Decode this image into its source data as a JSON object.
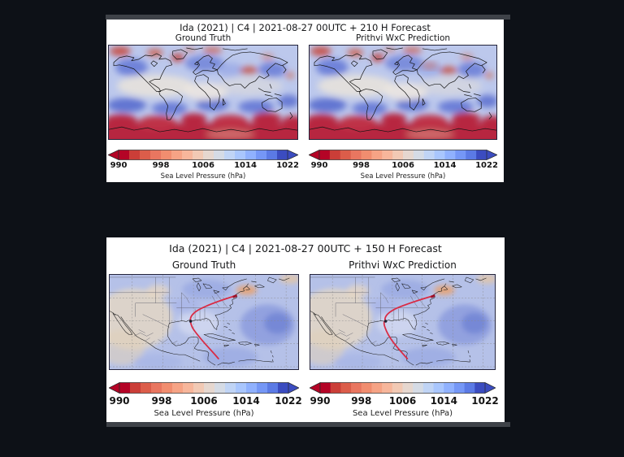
{
  "colors": {
    "background": "#0d1117",
    "figure_background": "#ffffff",
    "divider_bar": "#3e4248",
    "track": "#d92b45",
    "ocean_base": "#b5c1e8"
  },
  "figures": [
    {
      "title": "Ida (2021) | C4 | 2021-08-27 00UTC + 210 H Forecast",
      "panel_left": "Ground Truth",
      "panel_right": "Prithvi WxC Prediction"
    },
    {
      "title": "Ida (2021) | C4 | 2021-08-27 00UTC + 150 H Forecast",
      "panel_left": "Ground Truth",
      "panel_right": "Prithvi WxC Prediction"
    }
  ],
  "colorbar": {
    "ticks": [
      "990",
      "998",
      "1006",
      "1014",
      "1022"
    ],
    "label": "Sea Level Pressure (hPa)",
    "edge_color": "#2a2a2a",
    "colors": [
      "#b40426",
      "#cb3e38",
      "#dc5d4a",
      "#e97660",
      "#f18d6f",
      "#f6a385",
      "#f7b69b",
      "#f2c9b4",
      "#e6d7cf",
      "#d5dbe5",
      "#c0d4f5",
      "#a9c6fd",
      "#90b1fe",
      "#7597f6",
      "#5b7ae5",
      "#3b4cc0"
    ]
  },
  "chart_data": [
    {
      "type": "heatmap",
      "title": "Ida (2021) | C4 | 2021-08-27 00UTC + 210 H Forecast",
      "panels": [
        "Ground Truth",
        "Prithvi WxC Prediction"
      ],
      "projection": "global equirectangular world map with black coastlines",
      "variable": "Sea Level Pressure (hPa)",
      "colorbar_ticks": [
        990,
        998,
        1006,
        1014,
        1022
      ],
      "value_range": [
        990,
        1022
      ],
      "colormap": "coolwarm reversed (red = low pressure 990 hPa, blue = high pressure 1022 hPa), discrete segments with arrow extensions on both ends",
      "notable_features": "deep red low-pressure band over the Southern Ocean / Antarctica, red patches in the Arctic and near Greenland and central Asia, blue high-pressure over mid-latitude oceans, pale near-neutral tropics; both panels nearly identical"
    },
    {
      "type": "heatmap",
      "title": "Ida (2021) | C4 | 2021-08-27 00UTC + 150 H Forecast",
      "panels": [
        "Ground Truth",
        "Prithvi WxC Prediction"
      ],
      "projection": "regional map of North America, Gulf of Mexico, Caribbean and western Atlantic with dashed lat/lon gridlines, state borders and coastlines",
      "variable": "Sea Level Pressure (hPa)",
      "colorbar_ticks": [
        990,
        998,
        1006,
        1014,
        1022
      ],
      "value_range": [
        990,
        1022
      ],
      "colormap": "coolwarm reversed (red = low, blue = high)",
      "overlay": "red track of Hurricane Ida: from the Caribbean south of Cuba, northwest across the Gulf of Mexico, landfall marker dot on the Louisiana coast, then curving northeast to the New England coast; orange low patch offshore New England",
      "notable_features": "pale beige high-pressure-neutral area over the southwestern US / Mexico, darker blue high pressure over the central Atlantic; both panels nearly identical"
    }
  ]
}
